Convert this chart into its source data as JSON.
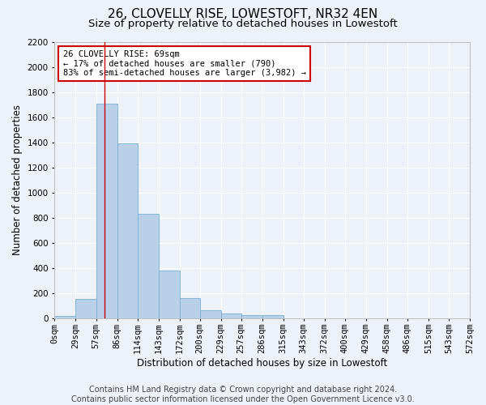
{
  "title": "26, CLOVELLY RISE, LOWESTOFT, NR32 4EN",
  "subtitle": "Size of property relative to detached houses in Lowestoft",
  "xlabel": "Distribution of detached houses by size in Lowestoft",
  "ylabel": "Number of detached properties",
  "footer_line1": "Contains HM Land Registry data © Crown copyright and database right 2024.",
  "footer_line2": "Contains public sector information licensed under the Open Government Licence v3.0.",
  "bar_edges": [
    0,
    29,
    57,
    86,
    114,
    143,
    172,
    200,
    229,
    257,
    286,
    315,
    343,
    372,
    400,
    429,
    458,
    486,
    515,
    543,
    572
  ],
  "bar_heights": [
    20,
    155,
    1710,
    1390,
    835,
    385,
    165,
    65,
    38,
    28,
    28,
    5,
    0,
    0,
    0,
    0,
    0,
    0,
    0,
    0
  ],
  "bar_color": "#b8d0e8",
  "bar_edgecolor": "#7aafd4",
  "tick_labels": [
    "0sqm",
    "29sqm",
    "57sqm",
    "86sqm",
    "114sqm",
    "143sqm",
    "172sqm",
    "200sqm",
    "229sqm",
    "257sqm",
    "286sqm",
    "315sqm",
    "343sqm",
    "372sqm",
    "400sqm",
    "429sqm",
    "458sqm",
    "486sqm",
    "515sqm",
    "543sqm",
    "572sqm"
  ],
  "property_line_x": 69,
  "property_line_color": "#cc0000",
  "annotation_line1": "26 CLOVELLY RISE: 69sqm",
  "annotation_line2": "← 17% of detached houses are smaller (790)",
  "annotation_line3": "83% of semi-detached houses are larger (3,982) →",
  "annotation_box_color": "#cc0000",
  "ylim": [
    0,
    2200
  ],
  "yticks": [
    0,
    200,
    400,
    600,
    800,
    1000,
    1200,
    1400,
    1600,
    1800,
    2000,
    2200
  ],
  "background_color": "#edf2f8",
  "plot_bg_color": "#edf2f8",
  "grid_color": "#ffffff",
  "title_fontsize": 11,
  "subtitle_fontsize": 9.5,
  "axis_label_fontsize": 8.5,
  "tick_fontsize": 7.5,
  "annotation_fontsize": 7.5,
  "footer_fontsize": 7
}
